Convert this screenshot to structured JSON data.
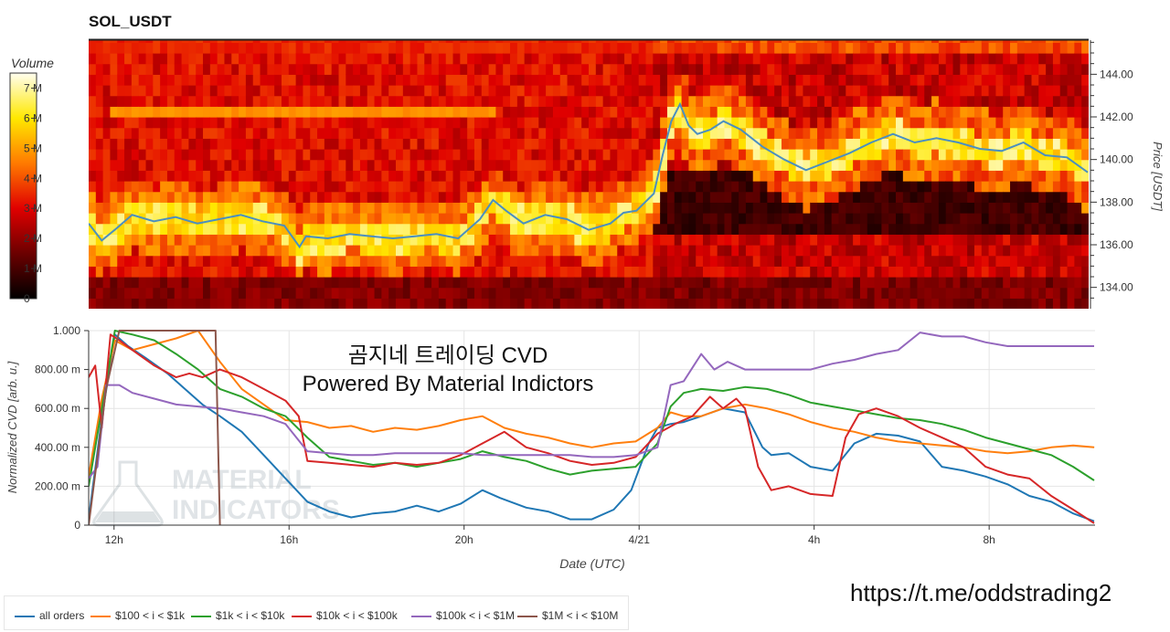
{
  "header": {
    "title": "SOL_USDT"
  },
  "colorbar": {
    "label": "Volume",
    "ticks": [
      "0",
      "1 M",
      "2 M",
      "3 M",
      "4 M",
      "5 M",
      "6 M",
      "7 M"
    ]
  },
  "overlay": {
    "line1": "곰지네 트레이딩 CVD",
    "line2": "Powered By Material Indictors",
    "watermark_text": [
      "MATERIAL",
      "INDICATORS"
    ],
    "link": "https://t.me/oddstrading2"
  },
  "colors": {
    "all_orders": "#1f77b4",
    "s100": "#ff7f0e",
    "s1k": "#2ca02c",
    "s10k": "#d62728",
    "s100k": "#9467bd",
    "s1m": "#8c564b",
    "price": "#4a8fc0"
  },
  "chart_data": [
    {
      "type": "heatmap",
      "title": "SOL_USDT",
      "colorbar_label": "Volume",
      "colorbar_range": [
        0,
        7500000
      ],
      "y_axis_label": "Price [USDT]",
      "y_ticks": [
        "134.00",
        "136.00",
        "138.00",
        "140.00",
        "142.00",
        "144.00"
      ],
      "ylim": [
        133.0,
        145.6
      ],
      "price_line": {
        "name": "price",
        "x": [
          11.0,
          11.3,
          11.6,
          12.0,
          12.5,
          13.0,
          13.5,
          14.0,
          14.5,
          15.0,
          15.5,
          15.85,
          16.0,
          16.5,
          17.0,
          17.5,
          18.0,
          18.5,
          19.0,
          19.5,
          20.0,
          20.3,
          20.6,
          21.0,
          21.5,
          22.0,
          22.5,
          23.0,
          23.3,
          23.6,
          24.0,
          24.2,
          24.4,
          24.6,
          24.8,
          25.0,
          25.3,
          25.6,
          26.0,
          26.5,
          27.0,
          27.5,
          28.0,
          28.5,
          29.0,
          29.5,
          30.0,
          30.5,
          31.0,
          31.5,
          32.0,
          32.5,
          33.0,
          33.5,
          33.98
        ],
        "y": [
          137.0,
          136.2,
          136.7,
          137.4,
          137.1,
          137.3,
          137.0,
          137.2,
          137.4,
          137.1,
          136.9,
          135.9,
          136.4,
          136.3,
          136.5,
          136.4,
          136.3,
          136.4,
          136.5,
          136.3,
          137.2,
          138.1,
          137.6,
          137.0,
          137.4,
          137.2,
          136.7,
          137.0,
          137.5,
          137.6,
          138.4,
          140.2,
          141.8,
          142.6,
          141.6,
          141.2,
          141.4,
          141.8,
          141.4,
          140.6,
          140.0,
          139.5,
          139.9,
          140.3,
          140.8,
          141.2,
          140.8,
          141.0,
          140.8,
          140.5,
          140.4,
          140.8,
          140.2,
          140.1,
          139.4
        ]
      }
    },
    {
      "type": "line",
      "xlabel": "Date (UTC)",
      "ylabel": "Normalized CVD [arb. u.]",
      "xlim": [
        11.0,
        34.0
      ],
      "ylim": [
        0,
        1000
      ],
      "x_ticks": [
        {
          "value": 11.58,
          "label": "12h"
        },
        {
          "value": 15.58,
          "label": "16h"
        },
        {
          "value": 19.58,
          "label": "20h"
        },
        {
          "value": 23.58,
          "label": "4/21"
        },
        {
          "value": 27.58,
          "label": "4h"
        },
        {
          "value": 31.58,
          "label": "8h"
        }
      ],
      "y_ticks": [
        {
          "value": 0,
          "label": "0"
        },
        {
          "value": 200,
          "label": "200.00 m"
        },
        {
          "value": 400,
          "label": "400.00 m"
        },
        {
          "value": 600,
          "label": "600.00 m"
        },
        {
          "value": 800,
          "label": "800.00 m"
        },
        {
          "value": 1000,
          "label": "1.000"
        }
      ],
      "series": [
        {
          "name": "all orders",
          "x": [
            11.0,
            11.3,
            11.6,
            11.9,
            12.3,
            12.8,
            13.2,
            13.6,
            14.0,
            14.5,
            15.0,
            15.5,
            16.0,
            16.5,
            17.0,
            17.5,
            18.0,
            18.5,
            19.0,
            19.5,
            20.0,
            20.4,
            21.0,
            21.5,
            22.0,
            22.5,
            23.0,
            23.4,
            23.8,
            24.0,
            24.3,
            24.6,
            25.0,
            25.5,
            26.0,
            26.4,
            26.6,
            27.0,
            27.5,
            28.0,
            28.5,
            29.0,
            29.5,
            30.0,
            30.5,
            31.0,
            31.5,
            32.0,
            32.5,
            33.0,
            33.5,
            33.98
          ],
          "y": [
            30,
            550,
            980,
            920,
            860,
            780,
            700,
            620,
            560,
            480,
            360,
            240,
            120,
            70,
            40,
            60,
            70,
            100,
            70,
            110,
            180,
            140,
            90,
            70,
            30,
            30,
            80,
            180,
            420,
            500,
            520,
            530,
            560,
            600,
            580,
            400,
            360,
            370,
            300,
            280,
            420,
            470,
            460,
            430,
            300,
            280,
            250,
            210,
            150,
            120,
            60,
            20
          ]
        },
        {
          "name": "$100 < i < $1k",
          "x": [
            11.0,
            11.3,
            11.6,
            12.0,
            12.5,
            13.0,
            13.5,
            14.0,
            14.5,
            15.0,
            15.5,
            16.0,
            16.5,
            17.0,
            17.5,
            18.0,
            18.5,
            19.0,
            19.5,
            20.0,
            20.5,
            21.0,
            21.5,
            22.0,
            22.5,
            23.0,
            23.5,
            24.0,
            24.3,
            24.6,
            25.0,
            25.5,
            26.0,
            26.5,
            27.0,
            27.5,
            28.0,
            28.5,
            29.0,
            29.5,
            30.0,
            30.5,
            31.0,
            31.5,
            32.0,
            32.5,
            33.0,
            33.5,
            33.98
          ],
          "y": [
            250,
            650,
            950,
            900,
            930,
            960,
            1000,
            840,
            700,
            620,
            540,
            530,
            500,
            510,
            480,
            500,
            490,
            510,
            540,
            560,
            500,
            470,
            450,
            420,
            400,
            420,
            430,
            500,
            580,
            560,
            560,
            600,
            620,
            600,
            570,
            530,
            500,
            480,
            450,
            430,
            420,
            410,
            400,
            380,
            370,
            380,
            400,
            410,
            400
          ]
        },
        {
          "name": "$1k < i < $10k",
          "x": [
            11.0,
            11.3,
            11.6,
            12.0,
            12.5,
            13.0,
            13.5,
            14.0,
            14.5,
            15.0,
            15.5,
            16.0,
            16.5,
            17.0,
            17.5,
            18.0,
            18.5,
            19.0,
            19.5,
            20.0,
            20.5,
            21.0,
            21.5,
            22.0,
            22.5,
            23.0,
            23.5,
            24.0,
            24.3,
            24.6,
            25.0,
            25.5,
            26.0,
            26.5,
            27.0,
            27.5,
            28.0,
            28.5,
            29.0,
            29.5,
            30.0,
            30.5,
            31.0,
            31.5,
            32.0,
            32.5,
            33.0,
            33.5,
            33.98
          ],
          "y": [
            200,
            600,
            1000,
            980,
            950,
            880,
            800,
            700,
            660,
            600,
            560,
            450,
            350,
            330,
            310,
            320,
            300,
            320,
            340,
            380,
            350,
            330,
            290,
            260,
            280,
            290,
            300,
            420,
            610,
            680,
            700,
            690,
            710,
            700,
            670,
            630,
            610,
            590,
            570,
            550,
            540,
            520,
            490,
            450,
            420,
            390,
            360,
            300,
            230
          ]
        },
        {
          "name": "$10k < i < $100k",
          "x": [
            11.0,
            11.15,
            11.3,
            11.5,
            11.7,
            12.0,
            12.5,
            13.0,
            13.3,
            13.6,
            14.0,
            14.5,
            15.0,
            15.5,
            15.8,
            16.0,
            16.5,
            17.0,
            17.5,
            18.0,
            18.5,
            19.0,
            19.5,
            20.0,
            20.5,
            21.0,
            21.5,
            22.0,
            22.5,
            23.0,
            23.5,
            24.0,
            24.4,
            24.8,
            25.2,
            25.5,
            25.8,
            26.0,
            26.3,
            26.6,
            27.0,
            27.5,
            28.0,
            28.3,
            28.6,
            29.0,
            29.5,
            30.0,
            30.5,
            31.0,
            31.5,
            32.0,
            32.5,
            33.0,
            33.5,
            33.98
          ],
          "y": [
            760,
            820,
            500,
            980,
            950,
            900,
            820,
            760,
            780,
            760,
            800,
            760,
            700,
            640,
            560,
            330,
            320,
            310,
            300,
            320,
            310,
            320,
            360,
            420,
            480,
            400,
            370,
            330,
            310,
            320,
            350,
            470,
            520,
            560,
            660,
            600,
            650,
            600,
            300,
            180,
            200,
            160,
            150,
            450,
            570,
            600,
            560,
            500,
            450,
            400,
            300,
            260,
            240,
            150,
            80,
            10
          ]
        },
        {
          "name": "$100k < i < $1M",
          "x": [
            11.0,
            11.2,
            11.4,
            11.7,
            12.0,
            12.5,
            13.0,
            13.5,
            14.0,
            14.5,
            15.0,
            15.5,
            16.0,
            16.5,
            17.0,
            17.5,
            18.0,
            18.5,
            19.0,
            19.5,
            20.0,
            20.5,
            21.0,
            21.5,
            22.0,
            22.5,
            23.0,
            23.5,
            24.0,
            24.3,
            24.6,
            25.0,
            25.3,
            25.6,
            26.0,
            26.5,
            27.0,
            27.5,
            28.0,
            28.5,
            29.0,
            29.5,
            30.0,
            30.5,
            31.0,
            31.5,
            32.0,
            32.5,
            33.0,
            33.5,
            33.98
          ],
          "y": [
            240,
            300,
            720,
            720,
            680,
            650,
            620,
            610,
            600,
            580,
            560,
            520,
            380,
            370,
            360,
            360,
            370,
            370,
            370,
            370,
            360,
            360,
            360,
            360,
            360,
            350,
            350,
            360,
            400,
            720,
            740,
            880,
            800,
            840,
            800,
            800,
            800,
            800,
            830,
            850,
            880,
            900,
            990,
            970,
            970,
            940,
            920,
            920,
            920,
            920,
            920
          ]
        },
        {
          "name": "$1M < i < $10M",
          "x": [
            11.0,
            11.4,
            11.7,
            12.0,
            12.5,
            13.0,
            13.4,
            13.9,
            13.95,
            14.0
          ],
          "y": [
            0,
            700,
            1000,
            1000,
            1000,
            1000,
            1000,
            1000,
            500,
            0
          ]
        }
      ],
      "legend": [
        "all orders",
        "$100 < i < $1k",
        "$1k < i < $10k",
        "$10k < i < $100k",
        "$100k < i < $1M",
        "$1M < i < $10M"
      ],
      "legend_position": "bottom-left"
    }
  ]
}
